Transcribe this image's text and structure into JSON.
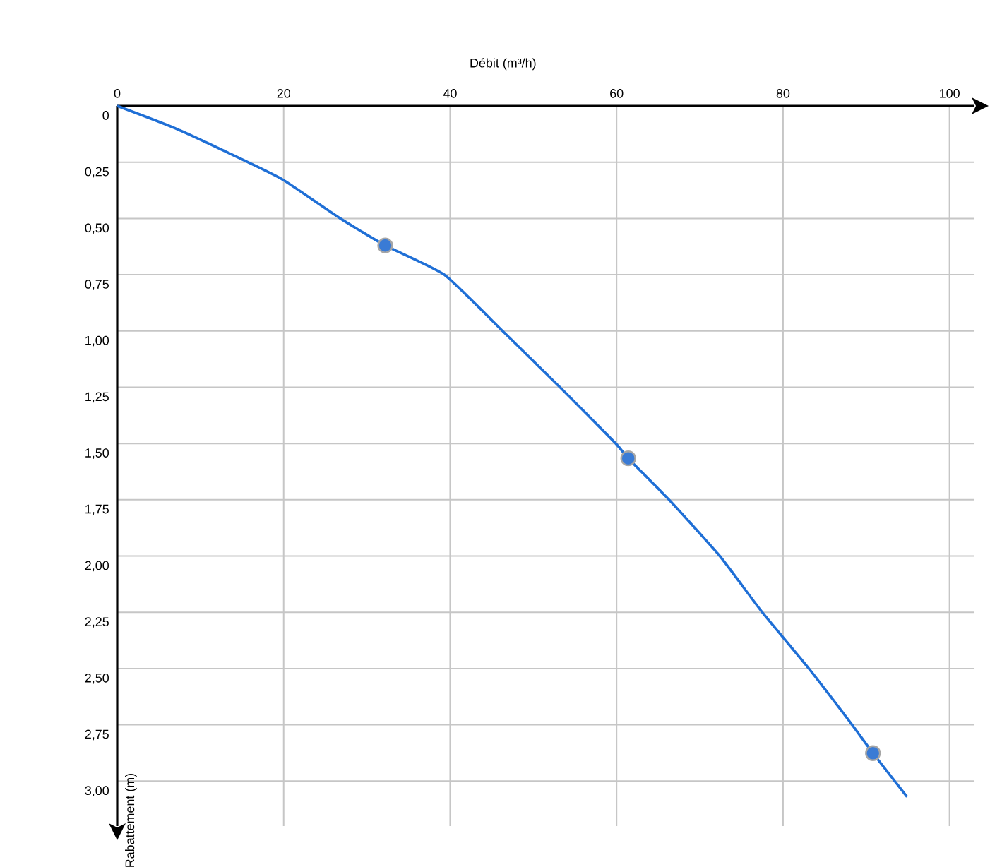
{
  "chart_data": {
    "type": "line",
    "xlabel": "Débit (m³/h)",
    "ylabel": "Rabattement (m)",
    "series": [
      {
        "color": "#1f6fd6",
        "marker": "none",
        "line_style": "solid",
        "x": [
          0,
          7,
          15.7,
          20,
          26.8,
          32.2,
          39.3,
          46.3,
          53.2,
          59.9,
          61.4,
          66.3,
          72.4,
          77.5,
          83.1,
          88.3,
          90.8,
          94.9
        ],
        "values": [
          0,
          0.1,
          0.25,
          0.33,
          0.5,
          0.62,
          0.75,
          1.0,
          1.25,
          1.5,
          1.566,
          1.75,
          2.0,
          2.25,
          2.5,
          2.75,
          2.876,
          3.07
        ]
      },
      {
        "type": "scatter",
        "color": "#3a7bd5",
        "marker": "circle",
        "x": [
          32.2,
          61.4,
          90.8
        ],
        "values": [
          0.62,
          1.566,
          2.876
        ]
      }
    ],
    "xlim": [
      0,
      103
    ],
    "ylim": [
      3.2,
      0
    ],
    "xticks": [
      0,
      20,
      40,
      60,
      80,
      100
    ],
    "yticks": [
      0,
      {
        "value": 0.25,
        "label": "0,25"
      },
      {
        "value": 0.5,
        "label": "0,50"
      },
      {
        "value": 0.75,
        "label": "0,75"
      },
      {
        "value": 1.0,
        "label": "1,00"
      },
      {
        "value": 1.25,
        "label": "1,25"
      },
      {
        "value": 1.5,
        "label": "1,50"
      },
      {
        "value": 1.75,
        "label": "1,75"
      },
      {
        "value": 2.0,
        "label": "2,00"
      },
      {
        "value": 2.25,
        "label": "2,25"
      },
      {
        "value": 2.5,
        "label": "2,50"
      },
      {
        "value": 2.75,
        "label": "2,75"
      },
      {
        "value": 3.0,
        "label": "3,00"
      }
    ],
    "grid": true
  }
}
